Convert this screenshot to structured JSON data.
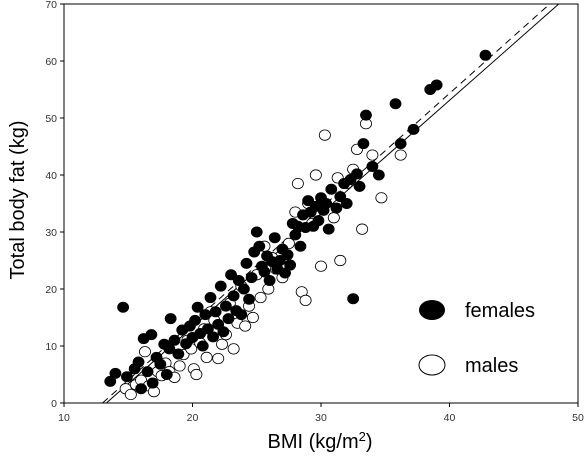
{
  "chart_data": {
    "type": "scatter",
    "xlabel": "BMI (kg/m",
    "xlabel_sup": "2",
    "xlabel_end": ")",
    "ylabel": "Total body fat (kg)",
    "xlim": [
      10,
      50
    ],
    "ylim": [
      0,
      70
    ],
    "xticks": [
      "10",
      "20",
      "30",
      "40",
      "50"
    ],
    "yticks": [
      "0",
      "10",
      "20",
      "30",
      "40",
      "50",
      "60",
      "70"
    ],
    "legend_position": "bottom-right",
    "series": [
      {
        "name": "females",
        "marker": "filled-circle",
        "points": [
          [
            13.6,
            3.8
          ],
          [
            14.0,
            5.2
          ],
          [
            14.6,
            16.8
          ],
          [
            14.9,
            4.6
          ],
          [
            15.5,
            6.0
          ],
          [
            15.8,
            7.2
          ],
          [
            16.0,
            2.5
          ],
          [
            16.2,
            11.3
          ],
          [
            16.5,
            5.5
          ],
          [
            16.8,
            12.0
          ],
          [
            16.9,
            3.5
          ],
          [
            17.2,
            8.0
          ],
          [
            17.5,
            6.8
          ],
          [
            17.8,
            10.3
          ],
          [
            18.0,
            5.0
          ],
          [
            18.2,
            9.5
          ],
          [
            18.3,
            14.8
          ],
          [
            18.6,
            11.0
          ],
          [
            18.9,
            8.6
          ],
          [
            19.2,
            12.8
          ],
          [
            19.5,
            10.4
          ],
          [
            19.8,
            13.5
          ],
          [
            20.0,
            11.5
          ],
          [
            20.2,
            14.5
          ],
          [
            20.4,
            16.8
          ],
          [
            20.6,
            12.2
          ],
          [
            20.8,
            10.0
          ],
          [
            21.0,
            15.5
          ],
          [
            21.2,
            13.0
          ],
          [
            21.4,
            18.5
          ],
          [
            21.6,
            11.6
          ],
          [
            21.8,
            16.0
          ],
          [
            22.0,
            13.8
          ],
          [
            22.2,
            20.5
          ],
          [
            22.4,
            12.5
          ],
          [
            22.6,
            17.0
          ],
          [
            22.8,
            14.8
          ],
          [
            23.0,
            22.5
          ],
          [
            23.2,
            18.8
          ],
          [
            23.4,
            16.2
          ],
          [
            23.6,
            21.5
          ],
          [
            23.8,
            15.5
          ],
          [
            24.0,
            20.0
          ],
          [
            24.2,
            24.5
          ],
          [
            24.4,
            18.2
          ],
          [
            24.6,
            22.0
          ],
          [
            24.8,
            26.5
          ],
          [
            25.0,
            30.0
          ],
          [
            25.2,
            27.5
          ],
          [
            25.4,
            24.0
          ],
          [
            25.6,
            23.0
          ],
          [
            25.8,
            25.8
          ],
          [
            26.0,
            21.5
          ],
          [
            26.2,
            24.8
          ],
          [
            26.4,
            29.0
          ],
          [
            26.6,
            23.5
          ],
          [
            26.8,
            25.0
          ],
          [
            27.0,
            27.0
          ],
          [
            27.2,
            22.8
          ],
          [
            27.4,
            26.0
          ],
          [
            27.6,
            24.2
          ],
          [
            27.8,
            31.5
          ],
          [
            28.0,
            29.5
          ],
          [
            28.2,
            31.0
          ],
          [
            28.4,
            27.5
          ],
          [
            28.6,
            33.0
          ],
          [
            28.8,
            30.8
          ],
          [
            29.0,
            35.5
          ],
          [
            29.2,
            33.5
          ],
          [
            29.4,
            31.0
          ],
          [
            29.6,
            34.5
          ],
          [
            29.8,
            32.0
          ],
          [
            30.0,
            36.0
          ],
          [
            30.2,
            33.8
          ],
          [
            30.4,
            35.0
          ],
          [
            30.6,
            30.5
          ],
          [
            30.8,
            37.5
          ],
          [
            31.2,
            34.2
          ],
          [
            31.5,
            36.2
          ],
          [
            31.8,
            38.5
          ],
          [
            32.0,
            35.0
          ],
          [
            32.3,
            39.2
          ],
          [
            32.5,
            18.3
          ],
          [
            32.8,
            40.2
          ],
          [
            33.0,
            38.0
          ],
          [
            33.3,
            45.5
          ],
          [
            33.5,
            50.5
          ],
          [
            34.0,
            41.5
          ],
          [
            34.5,
            40.0
          ],
          [
            35.8,
            52.5
          ],
          [
            36.2,
            45.5
          ],
          [
            37.2,
            48.0
          ],
          [
            38.5,
            55.0
          ],
          [
            39.0,
            55.8
          ],
          [
            42.8,
            61.0
          ]
        ]
      },
      {
        "name": "males",
        "marker": "open-circle",
        "points": [
          [
            14.8,
            2.5
          ],
          [
            15.2,
            1.5
          ],
          [
            15.6,
            3.2
          ],
          [
            16.0,
            4.0
          ],
          [
            16.3,
            9.0
          ],
          [
            16.6,
            3.0
          ],
          [
            17.0,
            2.0
          ],
          [
            17.3,
            5.5
          ],
          [
            17.6,
            4.8
          ],
          [
            17.9,
            7.0
          ],
          [
            18.2,
            5.5
          ],
          [
            18.6,
            4.5
          ],
          [
            19.0,
            6.5
          ],
          [
            19.3,
            8.5
          ],
          [
            19.6,
            11.0
          ],
          [
            19.9,
            9.5
          ],
          [
            20.1,
            6.0
          ],
          [
            20.3,
            5.0
          ],
          [
            20.6,
            10.5
          ],
          [
            20.9,
            13.0
          ],
          [
            21.1,
            8.0
          ],
          [
            21.4,
            16.0
          ],
          [
            21.7,
            14.5
          ],
          [
            22.0,
            7.8
          ],
          [
            22.3,
            10.3
          ],
          [
            22.6,
            12.0
          ],
          [
            22.9,
            17.5
          ],
          [
            23.2,
            9.5
          ],
          [
            23.5,
            14.0
          ],
          [
            23.8,
            20.5
          ],
          [
            24.1,
            13.5
          ],
          [
            24.4,
            17.0
          ],
          [
            24.7,
            15.0
          ],
          [
            25.0,
            22.5
          ],
          [
            25.3,
            18.5
          ],
          [
            25.6,
            27.5
          ],
          [
            25.9,
            20.0
          ],
          [
            26.2,
            25.5
          ],
          [
            26.5,
            23.5
          ],
          [
            27.0,
            22.0
          ],
          [
            27.5,
            28.0
          ],
          [
            28.0,
            33.5
          ],
          [
            28.2,
            38.5
          ],
          [
            28.5,
            19.5
          ],
          [
            28.8,
            18.0
          ],
          [
            29.0,
            35.0
          ],
          [
            29.3,
            31.5
          ],
          [
            29.6,
            40.0
          ],
          [
            30.0,
            24.0
          ],
          [
            30.3,
            47.0
          ],
          [
            31.0,
            32.5
          ],
          [
            31.3,
            39.5
          ],
          [
            31.5,
            25.0
          ],
          [
            32.0,
            38.5
          ],
          [
            32.5,
            41.0
          ],
          [
            32.8,
            44.5
          ],
          [
            33.2,
            30.5
          ],
          [
            33.5,
            49.0
          ],
          [
            34.0,
            43.5
          ],
          [
            34.7,
            36.0
          ],
          [
            36.2,
            43.5
          ]
        ]
      }
    ],
    "fit_lines": [
      {
        "style": "solid",
        "x": [
          13.3,
          48.5
        ],
        "y": [
          0,
          70
        ]
      },
      {
        "style": "dashed",
        "x": [
          13.0,
          47.8
        ],
        "y": [
          0,
          70
        ]
      }
    ]
  },
  "legend": {
    "females_label": "females",
    "males_label": "males"
  }
}
